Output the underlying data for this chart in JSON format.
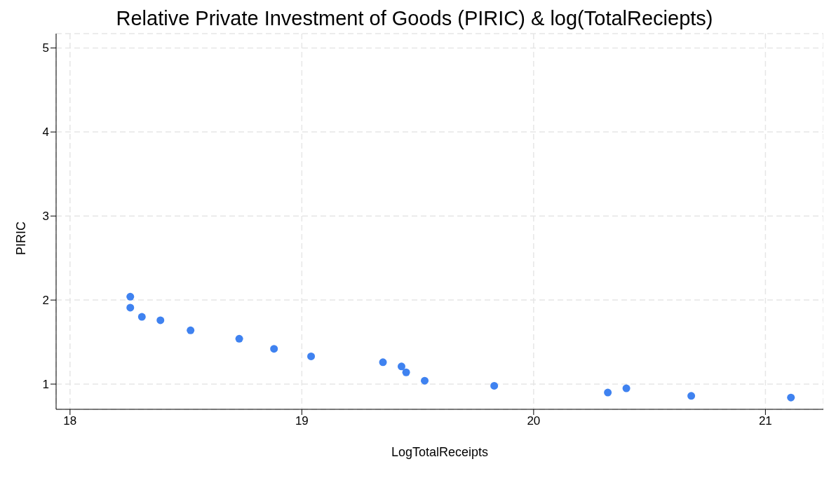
{
  "chart_data": {
    "type": "scatter",
    "title": "Relative Private Investment of Goods (PIRIC) & log(TotalReciepts)",
    "xlabel": "LogTotalReceipts",
    "ylabel": "PIRIC",
    "x": [
      18.26,
      18.26,
      18.31,
      18.39,
      18.52,
      18.73,
      18.88,
      19.04,
      19.35,
      19.43,
      19.45,
      19.53,
      19.83,
      20.32,
      20.4,
      20.68,
      21.11
    ],
    "values": [
      2.04,
      1.91,
      1.8,
      1.76,
      1.64,
      1.54,
      1.42,
      1.33,
      1.26,
      1.21,
      1.14,
      1.04,
      0.98,
      0.9,
      0.95,
      0.86,
      0.84
    ],
    "color": "#3f82f0",
    "xlim": [
      17.94,
      21.25
    ],
    "ylim": [
      0.7,
      5.17
    ],
    "xticks": [
      18,
      19,
      20,
      21
    ],
    "yticks": [
      1,
      2,
      3,
      4,
      5
    ],
    "grid": true,
    "marker": "circle"
  }
}
